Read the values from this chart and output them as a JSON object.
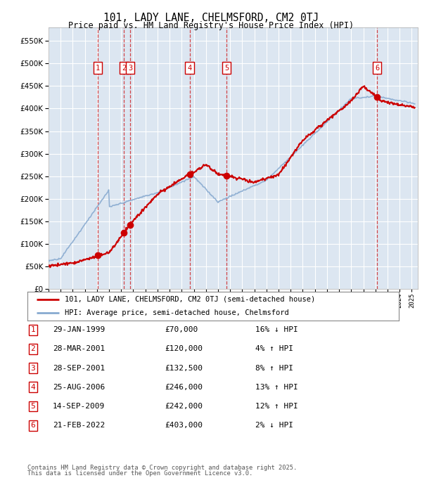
{
  "title": "101, LADY LANE, CHELMSFORD, CM2 0TJ",
  "subtitle": "Price paid vs. HM Land Registry's House Price Index (HPI)",
  "background_color": "#dce6f1",
  "fig_bg_color": "#ffffff",
  "grid_color": "#ffffff",
  "red_color": "#cc0000",
  "blue_color": "#88aad0",
  "xlim": [
    1995.0,
    2025.5
  ],
  "ylim": [
    0,
    580000
  ],
  "yticks": [
    0,
    50000,
    100000,
    150000,
    200000,
    250000,
    300000,
    350000,
    400000,
    450000,
    500000,
    550000
  ],
  "ytick_labels": [
    "£0",
    "£50K",
    "£100K",
    "£150K",
    "£200K",
    "£250K",
    "£300K",
    "£350K",
    "£400K",
    "£450K",
    "£500K",
    "£550K"
  ],
  "transactions": [
    {
      "num": 1,
      "year": 1999.08,
      "price": 70000
    },
    {
      "num": 2,
      "year": 2001.24,
      "price": 120000
    },
    {
      "num": 3,
      "year": 2001.74,
      "price": 132500
    },
    {
      "num": 4,
      "year": 2006.65,
      "price": 246000
    },
    {
      "num": 5,
      "year": 2009.71,
      "price": 242000
    },
    {
      "num": 6,
      "year": 2022.14,
      "price": 403000
    }
  ],
  "legend_line1": "101, LADY LANE, CHELMSFORD, CM2 0TJ (semi-detached house)",
  "legend_line2": "HPI: Average price, semi-detached house, Chelmsford",
  "table_rows": [
    [
      "1",
      "29-JAN-1999",
      "£70,000",
      "16% ↓ HPI"
    ],
    [
      "2",
      "28-MAR-2001",
      "£120,000",
      "4% ↑ HPI"
    ],
    [
      "3",
      "28-SEP-2001",
      "£132,500",
      "8% ↑ HPI"
    ],
    [
      "4",
      "25-AUG-2006",
      "£246,000",
      "13% ↑ HPI"
    ],
    [
      "5",
      "14-SEP-2009",
      "£242,000",
      "12% ↑ HPI"
    ],
    [
      "6",
      "21-FEB-2022",
      "£403,000",
      "2% ↓ HPI"
    ]
  ],
  "footer1": "Contains HM Land Registry data © Crown copyright and database right 2025.",
  "footer2": "This data is licensed under the Open Government Licence v3.0."
}
